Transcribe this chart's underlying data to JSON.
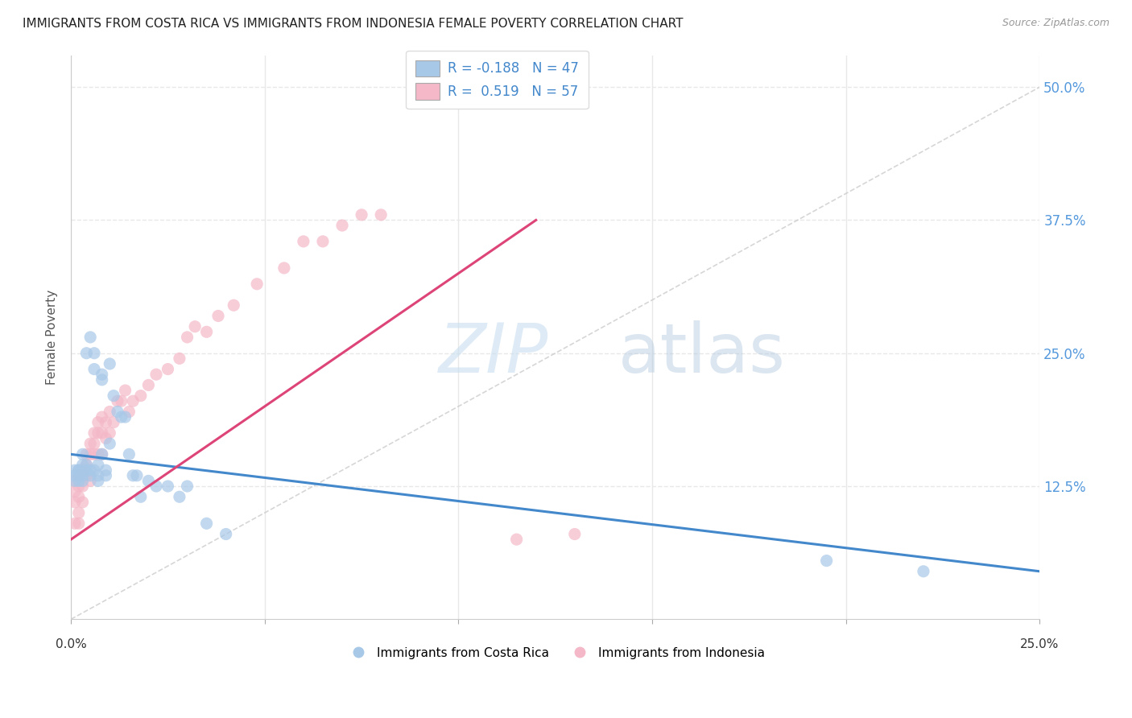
{
  "title": "IMMIGRANTS FROM COSTA RICA VS IMMIGRANTS FROM INDONESIA FEMALE POVERTY CORRELATION CHART",
  "source": "Source: ZipAtlas.com",
  "ylabel": "Female Poverty",
  "ytick_labels": [
    "12.5%",
    "25.0%",
    "37.5%",
    "50.0%"
  ],
  "ytick_values": [
    0.125,
    0.25,
    0.375,
    0.5
  ],
  "xlim": [
    0.0,
    0.25
  ],
  "ylim": [
    0.0,
    0.53
  ],
  "legend_r_blue": "R = -0.188",
  "legend_n_blue": "N = 47",
  "legend_r_pink": "R =  0.519",
  "legend_n_pink": "N = 57",
  "legend_label_bottom_blue": "Immigrants from Costa Rica",
  "legend_label_bottom_pink": "Immigrants from Indonesia",
  "color_blue_fill": "#a8c8e8",
  "color_pink_fill": "#f4b8c8",
  "color_blue_line": "#4488cc",
  "color_pink_line": "#dd4477",
  "color_diag": "#cccccc",
  "background_color": "#ffffff",
  "grid_color": "#e8e8e8",
  "costa_rica_x": [
    0.001,
    0.001,
    0.001,
    0.002,
    0.002,
    0.002,
    0.002,
    0.003,
    0.003,
    0.003,
    0.003,
    0.004,
    0.004,
    0.004,
    0.005,
    0.005,
    0.005,
    0.006,
    0.006,
    0.006,
    0.007,
    0.007,
    0.007,
    0.008,
    0.008,
    0.008,
    0.009,
    0.009,
    0.01,
    0.01,
    0.011,
    0.012,
    0.013,
    0.014,
    0.015,
    0.016,
    0.017,
    0.018,
    0.02,
    0.022,
    0.025,
    0.028,
    0.03,
    0.035,
    0.04,
    0.195,
    0.22
  ],
  "costa_rica_y": [
    0.135,
    0.14,
    0.13,
    0.14,
    0.135,
    0.13,
    0.14,
    0.155,
    0.145,
    0.135,
    0.13,
    0.25,
    0.145,
    0.14,
    0.265,
    0.14,
    0.135,
    0.25,
    0.235,
    0.14,
    0.145,
    0.135,
    0.13,
    0.23,
    0.225,
    0.155,
    0.14,
    0.135,
    0.24,
    0.165,
    0.21,
    0.195,
    0.19,
    0.19,
    0.155,
    0.135,
    0.135,
    0.115,
    0.13,
    0.125,
    0.125,
    0.115,
    0.125,
    0.09,
    0.08,
    0.055,
    0.045
  ],
  "indonesia_x": [
    0.001,
    0.001,
    0.001,
    0.001,
    0.002,
    0.002,
    0.002,
    0.002,
    0.002,
    0.003,
    0.003,
    0.003,
    0.003,
    0.004,
    0.004,
    0.004,
    0.005,
    0.005,
    0.005,
    0.006,
    0.006,
    0.006,
    0.007,
    0.007,
    0.007,
    0.008,
    0.008,
    0.008,
    0.009,
    0.009,
    0.01,
    0.01,
    0.011,
    0.012,
    0.013,
    0.014,
    0.015,
    0.016,
    0.018,
    0.02,
    0.022,
    0.025,
    0.028,
    0.03,
    0.032,
    0.035,
    0.038,
    0.042,
    0.048,
    0.055,
    0.06,
    0.065,
    0.07,
    0.075,
    0.08,
    0.115,
    0.13
  ],
  "indonesia_y": [
    0.13,
    0.12,
    0.11,
    0.09,
    0.135,
    0.125,
    0.115,
    0.1,
    0.09,
    0.14,
    0.135,
    0.125,
    0.11,
    0.155,
    0.145,
    0.135,
    0.165,
    0.155,
    0.13,
    0.175,
    0.165,
    0.155,
    0.185,
    0.175,
    0.155,
    0.19,
    0.175,
    0.155,
    0.185,
    0.17,
    0.195,
    0.175,
    0.185,
    0.205,
    0.205,
    0.215,
    0.195,
    0.205,
    0.21,
    0.22,
    0.23,
    0.235,
    0.245,
    0.265,
    0.275,
    0.27,
    0.285,
    0.295,
    0.315,
    0.33,
    0.355,
    0.355,
    0.37,
    0.38,
    0.38,
    0.075,
    0.08
  ],
  "cr_line_x": [
    0.0,
    0.25
  ],
  "cr_line_y": [
    0.155,
    0.045
  ],
  "id_line_x": [
    0.0,
    0.12
  ],
  "id_line_y": [
    0.075,
    0.375
  ]
}
